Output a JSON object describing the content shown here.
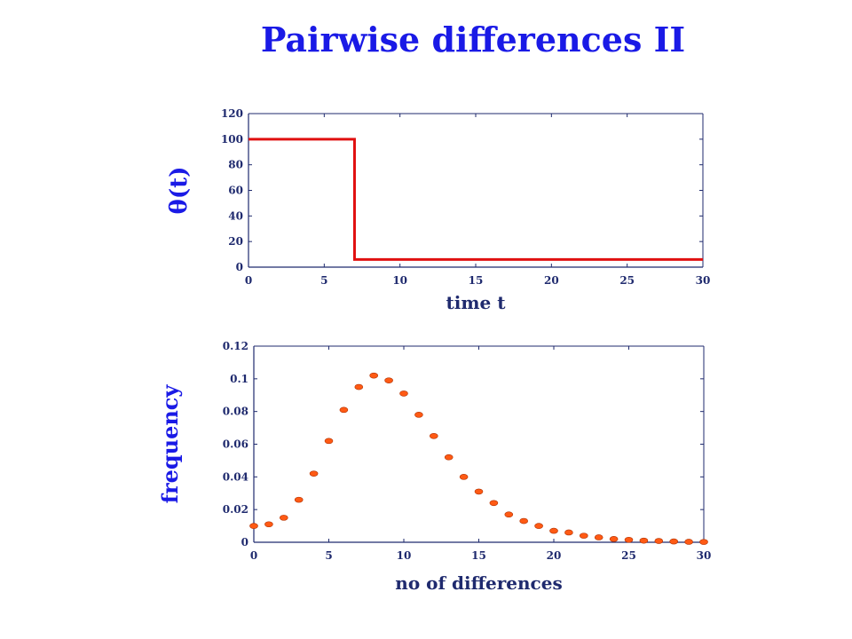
{
  "slide": {
    "title": "Pairwise differences II"
  },
  "chart_data": [
    {
      "type": "line",
      "xlabel": "time t",
      "ylabel": "θ(t)",
      "xlim": [
        0,
        30
      ],
      "ylim": [
        0,
        120
      ],
      "xticks": [
        "0",
        "5",
        "10",
        "15",
        "20",
        "25",
        "30"
      ],
      "yticks": [
        "0",
        "20",
        "40",
        "60",
        "80",
        "100",
        "120"
      ],
      "grid": false,
      "color": "#e01010",
      "series": [
        {
          "x": [
            0,
            7,
            7,
            30
          ],
          "y": [
            100,
            100,
            6,
            6
          ]
        }
      ]
    },
    {
      "type": "scatter",
      "xlabel": "no of differences",
      "ylabel": "frequency",
      "xlim": [
        0,
        30
      ],
      "ylim": [
        0,
        0.12
      ],
      "xticks": [
        "0",
        "5",
        "10",
        "15",
        "20",
        "25",
        "30"
      ],
      "yticks": [
        "0",
        "0.02",
        "0.04",
        "0.06",
        "0.08",
        "0.1",
        "0.12"
      ],
      "grid": false,
      "color": "#ff5a14",
      "series": [
        {
          "x": [
            0,
            1,
            2,
            3,
            4,
            5,
            6,
            7,
            8,
            9,
            10,
            11,
            12,
            13,
            14,
            15,
            16,
            17,
            18,
            19,
            20,
            21,
            22,
            23,
            24,
            25,
            26,
            27,
            28,
            29,
            30
          ],
          "y": [
            0.01,
            0.011,
            0.015,
            0.026,
            0.042,
            0.062,
            0.081,
            0.095,
            0.102,
            0.099,
            0.091,
            0.078,
            0.065,
            0.052,
            0.04,
            0.031,
            0.024,
            0.017,
            0.013,
            0.01,
            0.007,
            0.006,
            0.004,
            0.003,
            0.002,
            0.0015,
            0.001,
            0.0008,
            0.0005,
            0.0003,
            0.0002
          ]
        }
      ]
    }
  ]
}
